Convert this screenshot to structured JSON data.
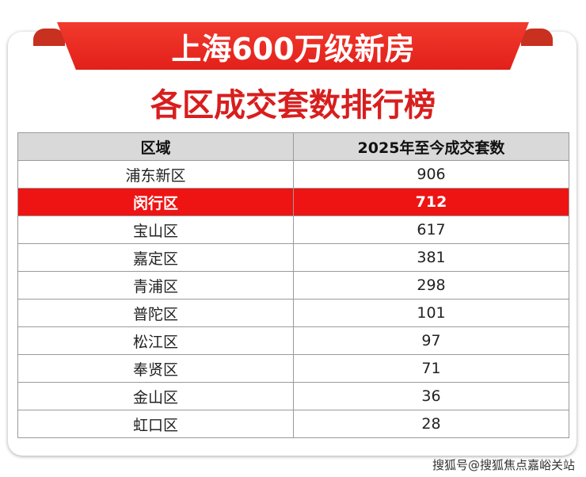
{
  "header": {
    "banner": "上海600万级新房",
    "title": "各区成交套数排行榜"
  },
  "colors": {
    "accent": "#ee1414",
    "header_bg": "#d9d9d9"
  },
  "table": {
    "columns": [
      "区域",
      "2025年至今成交套数"
    ],
    "highlighted_row": 1,
    "rows": [
      {
        "district": "浦东新区",
        "count": "906"
      },
      {
        "district": "闵行区",
        "count": "712"
      },
      {
        "district": "宝山区",
        "count": "617"
      },
      {
        "district": "嘉定区",
        "count": "381"
      },
      {
        "district": "青浦区",
        "count": "298"
      },
      {
        "district": "普陀区",
        "count": "101"
      },
      {
        "district": "松江区",
        "count": "97"
      },
      {
        "district": "奉贤区",
        "count": "71"
      },
      {
        "district": "金山区",
        "count": "36"
      },
      {
        "district": "虹口区",
        "count": "28"
      }
    ]
  },
  "watermark": "搜狐号@搜狐焦点嘉峪关站"
}
